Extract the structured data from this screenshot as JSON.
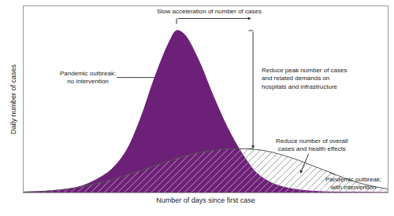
{
  "chart_data": {
    "type": "area",
    "x_label": "Number of days since first case",
    "y_label": "Daily number of cases",
    "x": [
      0,
      4,
      8,
      12,
      16,
      20,
      24,
      28,
      32,
      36,
      40,
      42,
      44,
      48,
      52,
      56,
      60,
      64,
      68,
      72,
      76,
      80,
      84,
      88,
      92,
      96,
      100
    ],
    "series": [
      {
        "name": "Pandemic outbreak:\nno intervention",
        "color": "#6d2077",
        "values": [
          0.2,
          0.5,
          1,
          2,
          4,
          8,
          14,
          25,
          45,
          71,
          93,
          100,
          98,
          82,
          60,
          40,
          24,
          12,
          6,
          3,
          1.5,
          0.7,
          0.3,
          0.15,
          0.1,
          0.05,
          0
        ]
      },
      {
        "name": "Pandemic outbreak:\nwith intervention",
        "color": "#555555",
        "values": [
          0.3,
          0.6,
          1.2,
          2.2,
          3.6,
          5.5,
          7.8,
          10.5,
          13.5,
          16.5,
          19.5,
          21,
          22.3,
          24.5,
          26,
          26.8,
          27,
          26.5,
          25,
          22.5,
          19.5,
          16,
          12.5,
          9,
          6,
          3.8,
          2.2
        ]
      }
    ],
    "annotations": [
      {
        "text": "Slow acceleration of number of cases"
      },
      {
        "text": "Reduce peak number of cases\nand related demands on\nhospitals and infrastructure"
      },
      {
        "text": "Reduce number of overall\ncases and health effects"
      }
    ],
    "xlim": [
      0,
      100
    ],
    "ylim": [
      0,
      115
    ],
    "grid": false,
    "tick_labels": false
  }
}
